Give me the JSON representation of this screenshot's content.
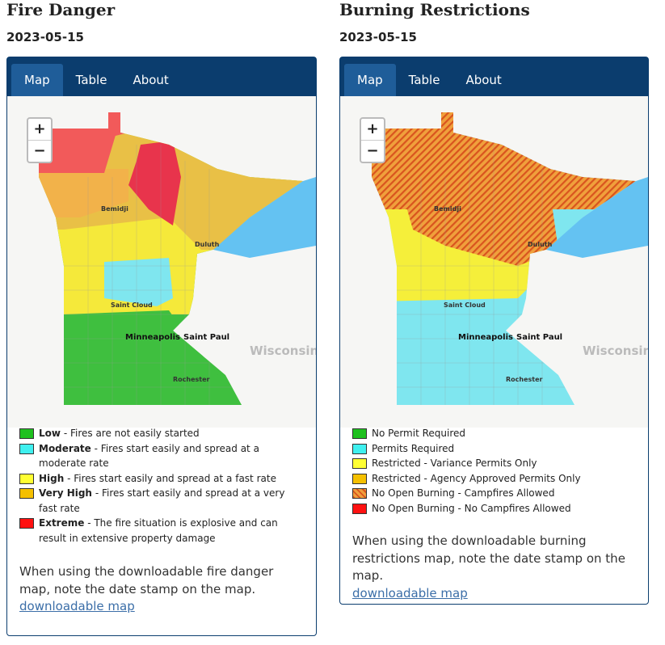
{
  "panels": [
    {
      "title": "Fire Danger",
      "date": "2023-05-15",
      "tabs": [
        "Map",
        "Table",
        "About"
      ],
      "zoom": [
        "+",
        "−"
      ],
      "map_labels": [
        "Bemidji",
        "Duluth",
        "Saint Cloud",
        "Minneapolis",
        "Saint Paul",
        "Rochester",
        "Wisconsin"
      ],
      "legend": [
        {
          "label": "Low",
          "description": "- Fires are not easily started"
        },
        {
          "label": "Moderate",
          "description": "- Fires start easily and spread at a moderate rate"
        },
        {
          "label": "High",
          "description": "- Fires start easily and spread at a fast rate"
        },
        {
          "label": "Very High",
          "description": "- Fires start easily and spread at a very fast rate"
        },
        {
          "label": "Extreme",
          "description": "- The fire situation is explosive and can result in extensive property damage"
        }
      ],
      "note": "When using the downloadable fire danger map, note the date stamp on the map.",
      "link": "downloadable map"
    },
    {
      "title": "Burning Restrictions",
      "date": "2023-05-15",
      "tabs": [
        "Map",
        "Table",
        "About"
      ],
      "zoom": [
        "+",
        "−"
      ],
      "map_labels": [
        "Bemidji",
        "Duluth",
        "Saint Cloud",
        "Minneapolis",
        "Saint Paul",
        "Rochester",
        "Wisconsin"
      ],
      "legend": [
        "No Permit Required",
        "Permits Required",
        "Restricted - Variance Permits Only",
        "Restricted - Agency Approved Permits Only",
        "No Open Burning - Campfires Allowed",
        "No Open Burning - No Campfires Allowed"
      ],
      "note": "When using the downloadable burning restrictions map, note the date stamp on the map.",
      "link": "downloadable map"
    }
  ]
}
